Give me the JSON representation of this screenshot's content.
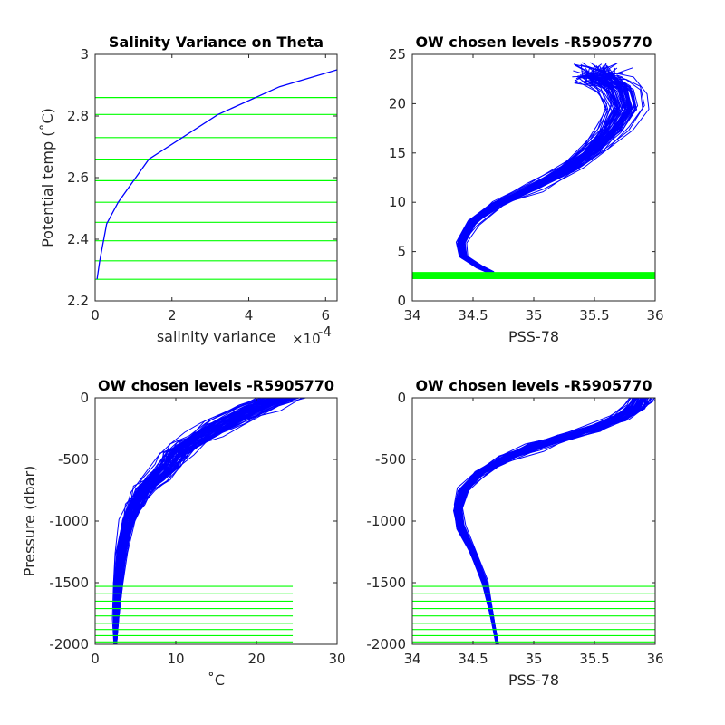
{
  "chart_data": [
    {
      "type": "line",
      "title": "Salinity Variance on Theta",
      "xlabel": "salinity variance",
      "x_exponent_label": "×10",
      "x_exponent": "-4",
      "ylabel": "Potential temp (˚C)",
      "xlim": [
        0,
        6.3
      ],
      "ylim": [
        2.2,
        3.0
      ],
      "xticks": [
        0,
        2,
        4,
        6
      ],
      "yticks": [
        2.2,
        2.4,
        2.6,
        2.8,
        3.0
      ],
      "xtick_labels": [
        "0",
        "2",
        "4",
        "6"
      ],
      "ytick_labels": [
        "2.2",
        "2.4",
        "2.6",
        "2.8",
        "3"
      ],
      "line_color": "#0000ff",
      "level_color": "#00ff00",
      "series": [
        {
          "x": [
            0.05,
            0.12,
            0.3,
            0.6,
            1.4,
            3.2,
            4.8,
            6.3
          ],
          "y": [
            2.27,
            2.33,
            2.45,
            2.52,
            2.66,
            2.805,
            2.895,
            2.95
          ]
        }
      ],
      "levels": [
        2.27,
        2.33,
        2.395,
        2.455,
        2.52,
        2.59,
        2.66,
        2.73,
        2.805,
        2.86
      ]
    },
    {
      "type": "line",
      "title": "OW chosen levels -R5905770",
      "xlabel": "PSS-78",
      "ylabel": "",
      "xlim": [
        34,
        36
      ],
      "ylim": [
        0,
        25
      ],
      "xticks": [
        34,
        34.5,
        35,
        35.5,
        36
      ],
      "yticks": [
        0,
        5,
        10,
        15,
        20,
        25
      ],
      "xtick_labels": [
        "34",
        "34.5",
        "35",
        "35.5",
        "36"
      ],
      "ytick_labels": [
        "0",
        "5",
        "10",
        "15",
        "20",
        "25"
      ],
      "line_color": "#0000ff",
      "level_color": "#00ff00",
      "levels": [
        2.27,
        2.33,
        2.395,
        2.455,
        2.52,
        2.59,
        2.66,
        2.73,
        2.805,
        2.86
      ],
      "series": [
        {
          "x": [
            34.65,
            34.55,
            34.42,
            34.4,
            34.5,
            34.7,
            35.0,
            35.3,
            35.5,
            35.65,
            35.75,
            35.7,
            35.55
          ],
          "y": [
            2.9,
            3.5,
            4.5,
            6.0,
            8.0,
            9.8,
            11.5,
            13.5,
            15.5,
            17.5,
            19.5,
            21.5,
            22.5
          ]
        }
      ]
    },
    {
      "type": "line",
      "title": "OW chosen levels -R5905770",
      "xlabel": "˚C",
      "ylabel": "Pressure (dbar)",
      "xlim": [
        0,
        30
      ],
      "ylim": [
        -2000,
        0
      ],
      "xticks": [
        0,
        10,
        20,
        30
      ],
      "yticks": [
        -2000,
        -1500,
        -1000,
        -500,
        0
      ],
      "xtick_labels": [
        "0",
        "10",
        "20",
        "30"
      ],
      "ytick_labels": [
        "-2000",
        "-1500",
        "-1000",
        "-500",
        "0"
      ],
      "line_color": "#0000ff",
      "level_color": "#00ff00",
      "level_x_range": [
        0,
        24.5
      ],
      "levels": [
        -1530,
        -1590,
        -1650,
        -1710,
        -1770,
        -1830,
        -1880,
        -1930,
        -1980,
        -2000
      ],
      "series": [
        {
          "x": [
            2.5,
            2.6,
            2.8,
            3.2,
            4.0,
            5.0,
            6.0,
            7.5,
            9.0,
            10.0,
            11.5,
            13.5,
            16.0,
            20.0,
            23.0
          ],
          "y": [
            -2000,
            -1800,
            -1500,
            -1250,
            -1000,
            -850,
            -750,
            -650,
            -550,
            -450,
            -380,
            -300,
            -200,
            -80,
            0
          ]
        }
      ]
    },
    {
      "type": "line",
      "title": "OW chosen levels -R5905770",
      "xlabel": "PSS-78",
      "ylabel": "",
      "xlim": [
        34,
        36
      ],
      "ylim": [
        -2000,
        0
      ],
      "xticks": [
        34,
        34.5,
        35,
        35.5,
        36
      ],
      "yticks": [
        -2000,
        -1500,
        -1000,
        -500,
        0
      ],
      "xtick_labels": [
        "34",
        "34.5",
        "35",
        "35.5",
        "36"
      ],
      "ytick_labels": [
        "-2000",
        "-1500",
        "-1000",
        "-500",
        "0"
      ],
      "line_color": "#0000ff",
      "level_color": "#00ff00",
      "level_x_range": [
        34,
        36
      ],
      "levels": [
        -1530,
        -1590,
        -1650,
        -1710,
        -1770,
        -1830,
        -1880,
        -1930,
        -1980,
        -2000
      ],
      "series": [
        {
          "x": [
            34.7,
            34.65,
            34.6,
            34.5,
            34.4,
            34.38,
            34.42,
            34.55,
            34.75,
            35.0,
            35.25,
            35.5,
            35.7,
            35.85,
            35.9
          ],
          "y": [
            -2000,
            -1750,
            -1500,
            -1250,
            -1050,
            -900,
            -750,
            -620,
            -500,
            -400,
            -320,
            -250,
            -170,
            -80,
            0
          ]
        }
      ]
    }
  ]
}
